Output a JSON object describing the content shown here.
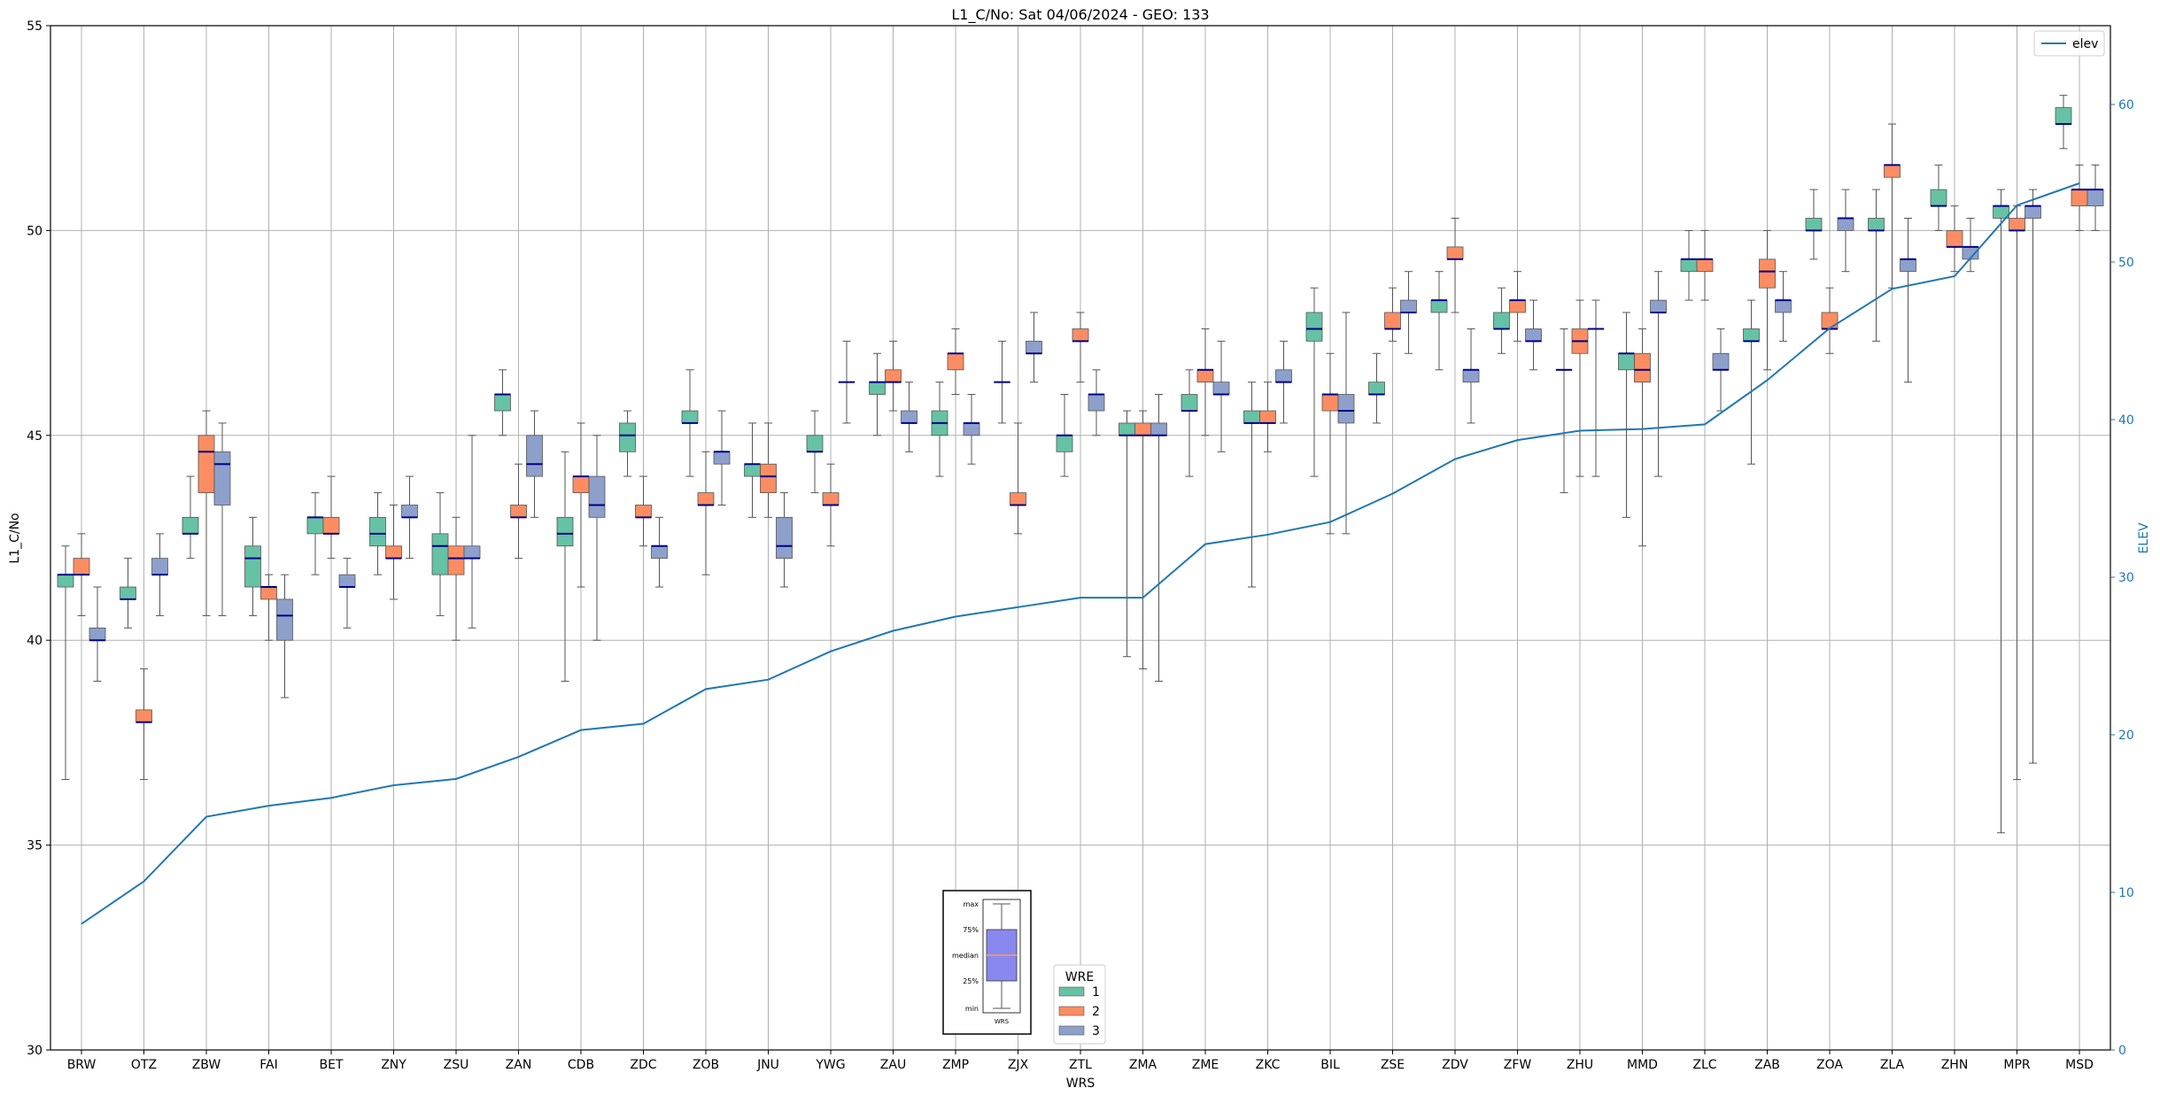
{
  "chart_data": {
    "type": "boxplot",
    "title": "L1_C/No: Sat 04/06/2024 - GEO: 133",
    "xlabel": "WRS",
    "ylabel": "L1_C/No",
    "y2label": "ELEV",
    "ylim": [
      30,
      55
    ],
    "y2lim": [
      0,
      65
    ],
    "yticks": [
      30,
      35,
      40,
      45,
      50,
      55
    ],
    "y2ticks": [
      0,
      10,
      20,
      30,
      40,
      50,
      60
    ],
    "grid": true,
    "categories": [
      "BRW",
      "OTZ",
      "ZBW",
      "FAI",
      "BET",
      "ZNY",
      "ZSU",
      "ZAN",
      "CDB",
      "ZDC",
      "ZOB",
      "JNU",
      "YWG",
      "ZAU",
      "ZMP",
      "ZJX",
      "ZTL",
      "ZMA",
      "ZME",
      "ZKC",
      "BIL",
      "ZSE",
      "ZDV",
      "ZFW",
      "ZHU",
      "MMD",
      "ZLC",
      "ZAB",
      "ZOA",
      "ZLA",
      "ZHN",
      "MPR",
      "MSD"
    ],
    "series": [
      {
        "name": "1",
        "color": "#66c2a5",
        "boxes": [
          {
            "min": 36.6,
            "q1": 41.3,
            "median": 41.6,
            "q3": 41.6,
            "max": 42.3
          },
          {
            "min": 40.3,
            "q1": 41.0,
            "median": 41.0,
            "q3": 41.3,
            "max": 42.0
          },
          {
            "min": 42.0,
            "q1": 42.6,
            "median": 42.6,
            "q3": 43.0,
            "max": 44.0
          },
          {
            "min": 40.6,
            "q1": 41.3,
            "median": 42.0,
            "q3": 42.3,
            "max": 43.0
          },
          {
            "min": 41.6,
            "q1": 42.6,
            "median": 43.0,
            "q3": 43.0,
            "max": 43.6
          },
          {
            "min": 41.6,
            "q1": 42.3,
            "median": 42.6,
            "q3": 43.0,
            "max": 43.6
          },
          {
            "min": 40.6,
            "q1": 41.6,
            "median": 42.3,
            "q3": 42.6,
            "max": 43.6
          },
          {
            "min": 45.0,
            "q1": 45.6,
            "median": 46.0,
            "q3": 46.0,
            "max": 46.6
          },
          {
            "min": 39.0,
            "q1": 42.3,
            "median": 42.6,
            "q3": 43.0,
            "max": 44.6
          },
          {
            "min": 44.0,
            "q1": 44.6,
            "median": 45.0,
            "q3": 45.3,
            "max": 45.6
          },
          {
            "min": 44.0,
            "q1": 45.3,
            "median": 45.3,
            "q3": 45.6,
            "max": 46.6
          },
          {
            "min": 43.0,
            "q1": 44.0,
            "median": 44.3,
            "q3": 44.3,
            "max": 45.3
          },
          {
            "min": 43.6,
            "q1": 44.6,
            "median": 44.6,
            "q3": 45.0,
            "max": 45.6
          },
          {
            "min": 45.0,
            "q1": 46.0,
            "median": 46.3,
            "q3": 46.3,
            "max": 47.0
          },
          {
            "min": 44.0,
            "q1": 45.0,
            "median": 45.3,
            "q3": 45.6,
            "max": 46.3
          },
          {
            "min": 45.3,
            "q1": 46.3,
            "median": 46.3,
            "q3": 46.3,
            "max": 47.3
          },
          {
            "min": 44.0,
            "q1": 44.6,
            "median": 45.0,
            "q3": 45.0,
            "max": 46.0
          },
          {
            "min": 39.6,
            "q1": 45.0,
            "median": 45.0,
            "q3": 45.3,
            "max": 45.6
          },
          {
            "min": 44.0,
            "q1": 45.6,
            "median": 45.6,
            "q3": 46.0,
            "max": 46.6
          },
          {
            "min": 41.3,
            "q1": 45.3,
            "median": 45.3,
            "q3": 45.6,
            "max": 46.3
          },
          {
            "min": 44.0,
            "q1": 47.3,
            "median": 47.6,
            "q3": 48.0,
            "max": 48.6
          },
          {
            "min": 45.3,
            "q1": 46.0,
            "median": 46.0,
            "q3": 46.3,
            "max": 47.0
          },
          {
            "min": 46.6,
            "q1": 48.0,
            "median": 48.3,
            "q3": 48.3,
            "max": 49.0
          },
          {
            "min": 47.0,
            "q1": 47.6,
            "median": 47.6,
            "q3": 48.0,
            "max": 48.6
          },
          {
            "min": 43.6,
            "q1": 46.6,
            "median": 46.6,
            "q3": 46.6,
            "max": 47.6
          },
          {
            "min": 43.0,
            "q1": 46.6,
            "median": 47.0,
            "q3": 47.0,
            "max": 48.0
          },
          {
            "min": 48.3,
            "q1": 49.0,
            "median": 49.3,
            "q3": 49.3,
            "max": 50.0
          },
          {
            "min": 44.3,
            "q1": 47.3,
            "median": 47.3,
            "q3": 47.6,
            "max": 48.3
          },
          {
            "min": 49.3,
            "q1": 50.0,
            "median": 50.0,
            "q3": 50.3,
            "max": 51.0
          },
          {
            "min": 47.3,
            "q1": 50.0,
            "median": 50.0,
            "q3": 50.3,
            "max": 51.0
          },
          {
            "min": 50.0,
            "q1": 50.6,
            "median": 50.6,
            "q3": 51.0,
            "max": 51.6
          },
          {
            "min": 35.3,
            "q1": 50.3,
            "median": 50.6,
            "q3": 50.6,
            "max": 51.0
          },
          {
            "min": 52.0,
            "q1": 52.6,
            "median": 52.6,
            "q3": 53.0,
            "max": 53.3
          }
        ]
      },
      {
        "name": "2",
        "color": "#fc8d62",
        "boxes": [
          {
            "min": 40.6,
            "q1": 41.6,
            "median": 41.6,
            "q3": 42.0,
            "max": 42.6
          },
          {
            "min": 36.6,
            "q1": 38.0,
            "median": 38.0,
            "q3": 38.3,
            "max": 39.3
          },
          {
            "min": 40.6,
            "q1": 43.6,
            "median": 44.6,
            "q3": 45.0,
            "max": 45.6
          },
          {
            "min": 40.0,
            "q1": 41.0,
            "median": 41.3,
            "q3": 41.3,
            "max": 41.6
          },
          {
            "min": 42.0,
            "q1": 42.6,
            "median": 42.6,
            "q3": 43.0,
            "max": 44.0
          },
          {
            "min": 41.0,
            "q1": 42.0,
            "median": 42.0,
            "q3": 42.3,
            "max": 43.3
          },
          {
            "min": 40.0,
            "q1": 41.6,
            "median": 42.0,
            "q3": 42.3,
            "max": 43.0
          },
          {
            "min": 42.0,
            "q1": 43.0,
            "median": 43.0,
            "q3": 43.3,
            "max": 44.3
          },
          {
            "min": 41.3,
            "q1": 43.6,
            "median": 44.0,
            "q3": 44.0,
            "max": 45.3
          },
          {
            "min": 42.3,
            "q1": 43.0,
            "median": 43.0,
            "q3": 43.3,
            "max": 44.0
          },
          {
            "min": 41.6,
            "q1": 43.3,
            "median": 43.3,
            "q3": 43.6,
            "max": 44.6
          },
          {
            "min": 43.0,
            "q1": 43.6,
            "median": 44.0,
            "q3": 44.3,
            "max": 45.3
          },
          {
            "min": 42.3,
            "q1": 43.3,
            "median": 43.3,
            "q3": 43.6,
            "max": 44.3
          },
          {
            "min": 45.6,
            "q1": 46.3,
            "median": 46.3,
            "q3": 46.6,
            "max": 47.3
          },
          {
            "min": 46.0,
            "q1": 46.6,
            "median": 47.0,
            "q3": 47.0,
            "max": 47.6
          },
          {
            "min": 42.6,
            "q1": 43.3,
            "median": 43.3,
            "q3": 43.6,
            "max": 45.3
          },
          {
            "min": 46.3,
            "q1": 47.3,
            "median": 47.3,
            "q3": 47.6,
            "max": 48.0
          },
          {
            "min": 39.3,
            "q1": 45.0,
            "median": 45.0,
            "q3": 45.3,
            "max": 45.6
          },
          {
            "min": 45.0,
            "q1": 46.3,
            "median": 46.6,
            "q3": 46.6,
            "max": 47.6
          },
          {
            "min": 44.6,
            "q1": 45.3,
            "median": 45.3,
            "q3": 45.6,
            "max": 46.3
          },
          {
            "min": 42.6,
            "q1": 45.6,
            "median": 46.0,
            "q3": 46.0,
            "max": 47.0
          },
          {
            "min": 47.3,
            "q1": 47.6,
            "median": 47.6,
            "q3": 48.0,
            "max": 48.6
          },
          {
            "min": 48.0,
            "q1": 49.3,
            "median": 49.3,
            "q3": 49.6,
            "max": 50.3
          },
          {
            "min": 47.3,
            "q1": 48.0,
            "median": 48.3,
            "q3": 48.3,
            "max": 49.0
          },
          {
            "min": 44.0,
            "q1": 47.0,
            "median": 47.3,
            "q3": 47.6,
            "max": 48.3
          },
          {
            "min": 42.3,
            "q1": 46.3,
            "median": 46.6,
            "q3": 47.0,
            "max": 47.6
          },
          {
            "min": 48.3,
            "q1": 49.0,
            "median": 49.3,
            "q3": 49.3,
            "max": 50.0
          },
          {
            "min": 46.6,
            "q1": 48.6,
            "median": 49.0,
            "q3": 49.3,
            "max": 50.0
          },
          {
            "min": 47.0,
            "q1": 47.6,
            "median": 47.6,
            "q3": 48.0,
            "max": 48.6
          },
          {
            "min": 48.6,
            "q1": 51.3,
            "median": 51.6,
            "q3": 51.6,
            "max": 52.6
          },
          {
            "min": 49.0,
            "q1": 49.6,
            "median": 49.6,
            "q3": 50.0,
            "max": 50.6
          },
          {
            "min": 36.6,
            "q1": 50.0,
            "median": 50.0,
            "q3": 50.3,
            "max": 50.6
          },
          {
            "min": 50.0,
            "q1": 50.6,
            "median": 51.0,
            "q3": 51.0,
            "max": 51.6
          }
        ]
      },
      {
        "name": "3",
        "color": "#8da0cb",
        "boxes": [
          {
            "min": 39.0,
            "q1": 40.0,
            "median": 40.0,
            "q3": 40.3,
            "max": 41.3
          },
          {
            "min": 40.6,
            "q1": 41.6,
            "median": 41.6,
            "q3": 42.0,
            "max": 42.6
          },
          {
            "min": 40.6,
            "q1": 43.3,
            "median": 44.3,
            "q3": 44.6,
            "max": 45.3
          },
          {
            "min": 38.6,
            "q1": 40.0,
            "median": 40.6,
            "q3": 41.0,
            "max": 41.6
          },
          {
            "min": 40.3,
            "q1": 41.3,
            "median": 41.3,
            "q3": 41.6,
            "max": 42.0
          },
          {
            "min": 42.0,
            "q1": 43.0,
            "median": 43.0,
            "q3": 43.3,
            "max": 44.0
          },
          {
            "min": 40.3,
            "q1": 42.0,
            "median": 42.0,
            "q3": 42.3,
            "max": 45.0
          },
          {
            "min": 43.0,
            "q1": 44.0,
            "median": 44.3,
            "q3": 45.0,
            "max": 45.6
          },
          {
            "min": 40.0,
            "q1": 43.0,
            "median": 43.3,
            "q3": 44.0,
            "max": 45.0
          },
          {
            "min": 41.3,
            "q1": 42.0,
            "median": 42.3,
            "q3": 42.3,
            "max": 43.0
          },
          {
            "min": 43.3,
            "q1": 44.3,
            "median": 44.6,
            "q3": 44.6,
            "max": 45.6
          },
          {
            "min": 41.3,
            "q1": 42.0,
            "median": 42.3,
            "q3": 43.0,
            "max": 43.6
          },
          {
            "min": 45.3,
            "q1": 46.3,
            "median": 46.3,
            "q3": 46.3,
            "max": 47.3
          },
          {
            "min": 44.6,
            "q1": 45.3,
            "median": 45.3,
            "q3": 45.6,
            "max": 46.3
          },
          {
            "min": 44.3,
            "q1": 45.0,
            "median": 45.3,
            "q3": 45.3,
            "max": 46.0
          },
          {
            "min": 46.3,
            "q1": 47.0,
            "median": 47.0,
            "q3": 47.3,
            "max": 48.0
          },
          {
            "min": 45.0,
            "q1": 45.6,
            "median": 46.0,
            "q3": 46.0,
            "max": 46.6
          },
          {
            "min": 39.0,
            "q1": 45.0,
            "median": 45.0,
            "q3": 45.3,
            "max": 46.0
          },
          {
            "min": 44.6,
            "q1": 46.0,
            "median": 46.0,
            "q3": 46.3,
            "max": 47.3
          },
          {
            "min": 45.3,
            "q1": 46.3,
            "median": 46.3,
            "q3": 46.6,
            "max": 47.3
          },
          {
            "min": 42.6,
            "q1": 45.3,
            "median": 45.6,
            "q3": 46.0,
            "max": 48.0
          },
          {
            "min": 47.0,
            "q1": 48.0,
            "median": 48.0,
            "q3": 48.3,
            "max": 49.0
          },
          {
            "min": 45.3,
            "q1": 46.3,
            "median": 46.6,
            "q3": 46.6,
            "max": 47.6
          },
          {
            "min": 46.6,
            "q1": 47.3,
            "median": 47.3,
            "q3": 47.6,
            "max": 48.3
          },
          {
            "min": 44.0,
            "q1": 47.6,
            "median": 47.6,
            "q3": 47.6,
            "max": 48.3
          },
          {
            "min": 44.0,
            "q1": 48.0,
            "median": 48.0,
            "q3": 48.3,
            "max": 49.0
          },
          {
            "min": 45.6,
            "q1": 46.6,
            "median": 46.6,
            "q3": 47.0,
            "max": 47.6
          },
          {
            "min": 47.3,
            "q1": 48.0,
            "median": 48.3,
            "q3": 48.3,
            "max": 49.0
          },
          {
            "min": 49.0,
            "q1": 50.0,
            "median": 50.3,
            "q3": 50.3,
            "max": 51.0
          },
          {
            "min": 46.3,
            "q1": 49.0,
            "median": 49.3,
            "q3": 49.3,
            "max": 50.3
          },
          {
            "min": 49.0,
            "q1": 49.3,
            "median": 49.6,
            "q3": 49.6,
            "max": 50.3
          },
          {
            "min": 37.0,
            "q1": 50.3,
            "median": 50.6,
            "q3": 50.6,
            "max": 51.0
          },
          {
            "min": 50.0,
            "q1": 50.6,
            "median": 51.0,
            "q3": 51.0,
            "max": 51.6
          }
        ]
      }
    ],
    "elev_line": {
      "name": "elev",
      "color": "#1f77b4",
      "values": [
        8.0,
        10.7,
        14.8,
        15.5,
        16.0,
        16.8,
        17.2,
        18.6,
        20.3,
        20.7,
        22.9,
        23.5,
        25.3,
        26.6,
        27.5,
        28.1,
        28.7,
        28.7,
        32.1,
        32.7,
        33.5,
        35.3,
        37.5,
        38.7,
        39.3,
        39.4,
        39.7,
        42.5,
        45.8,
        48.3,
        49.1,
        53.6,
        55.0
      ]
    },
    "legend": {
      "title": "WRE",
      "labels": [
        "1",
        "2",
        "3"
      ],
      "placement": "lower-center"
    },
    "legend_line": {
      "label": "elev",
      "placement": "upper-right"
    },
    "key_inset": {
      "labels": [
        "max",
        "75%",
        "median",
        "25%",
        "min"
      ],
      "xlabel": "WRS",
      "box_color": "#8888ee",
      "median_color": "#ff9966"
    }
  }
}
